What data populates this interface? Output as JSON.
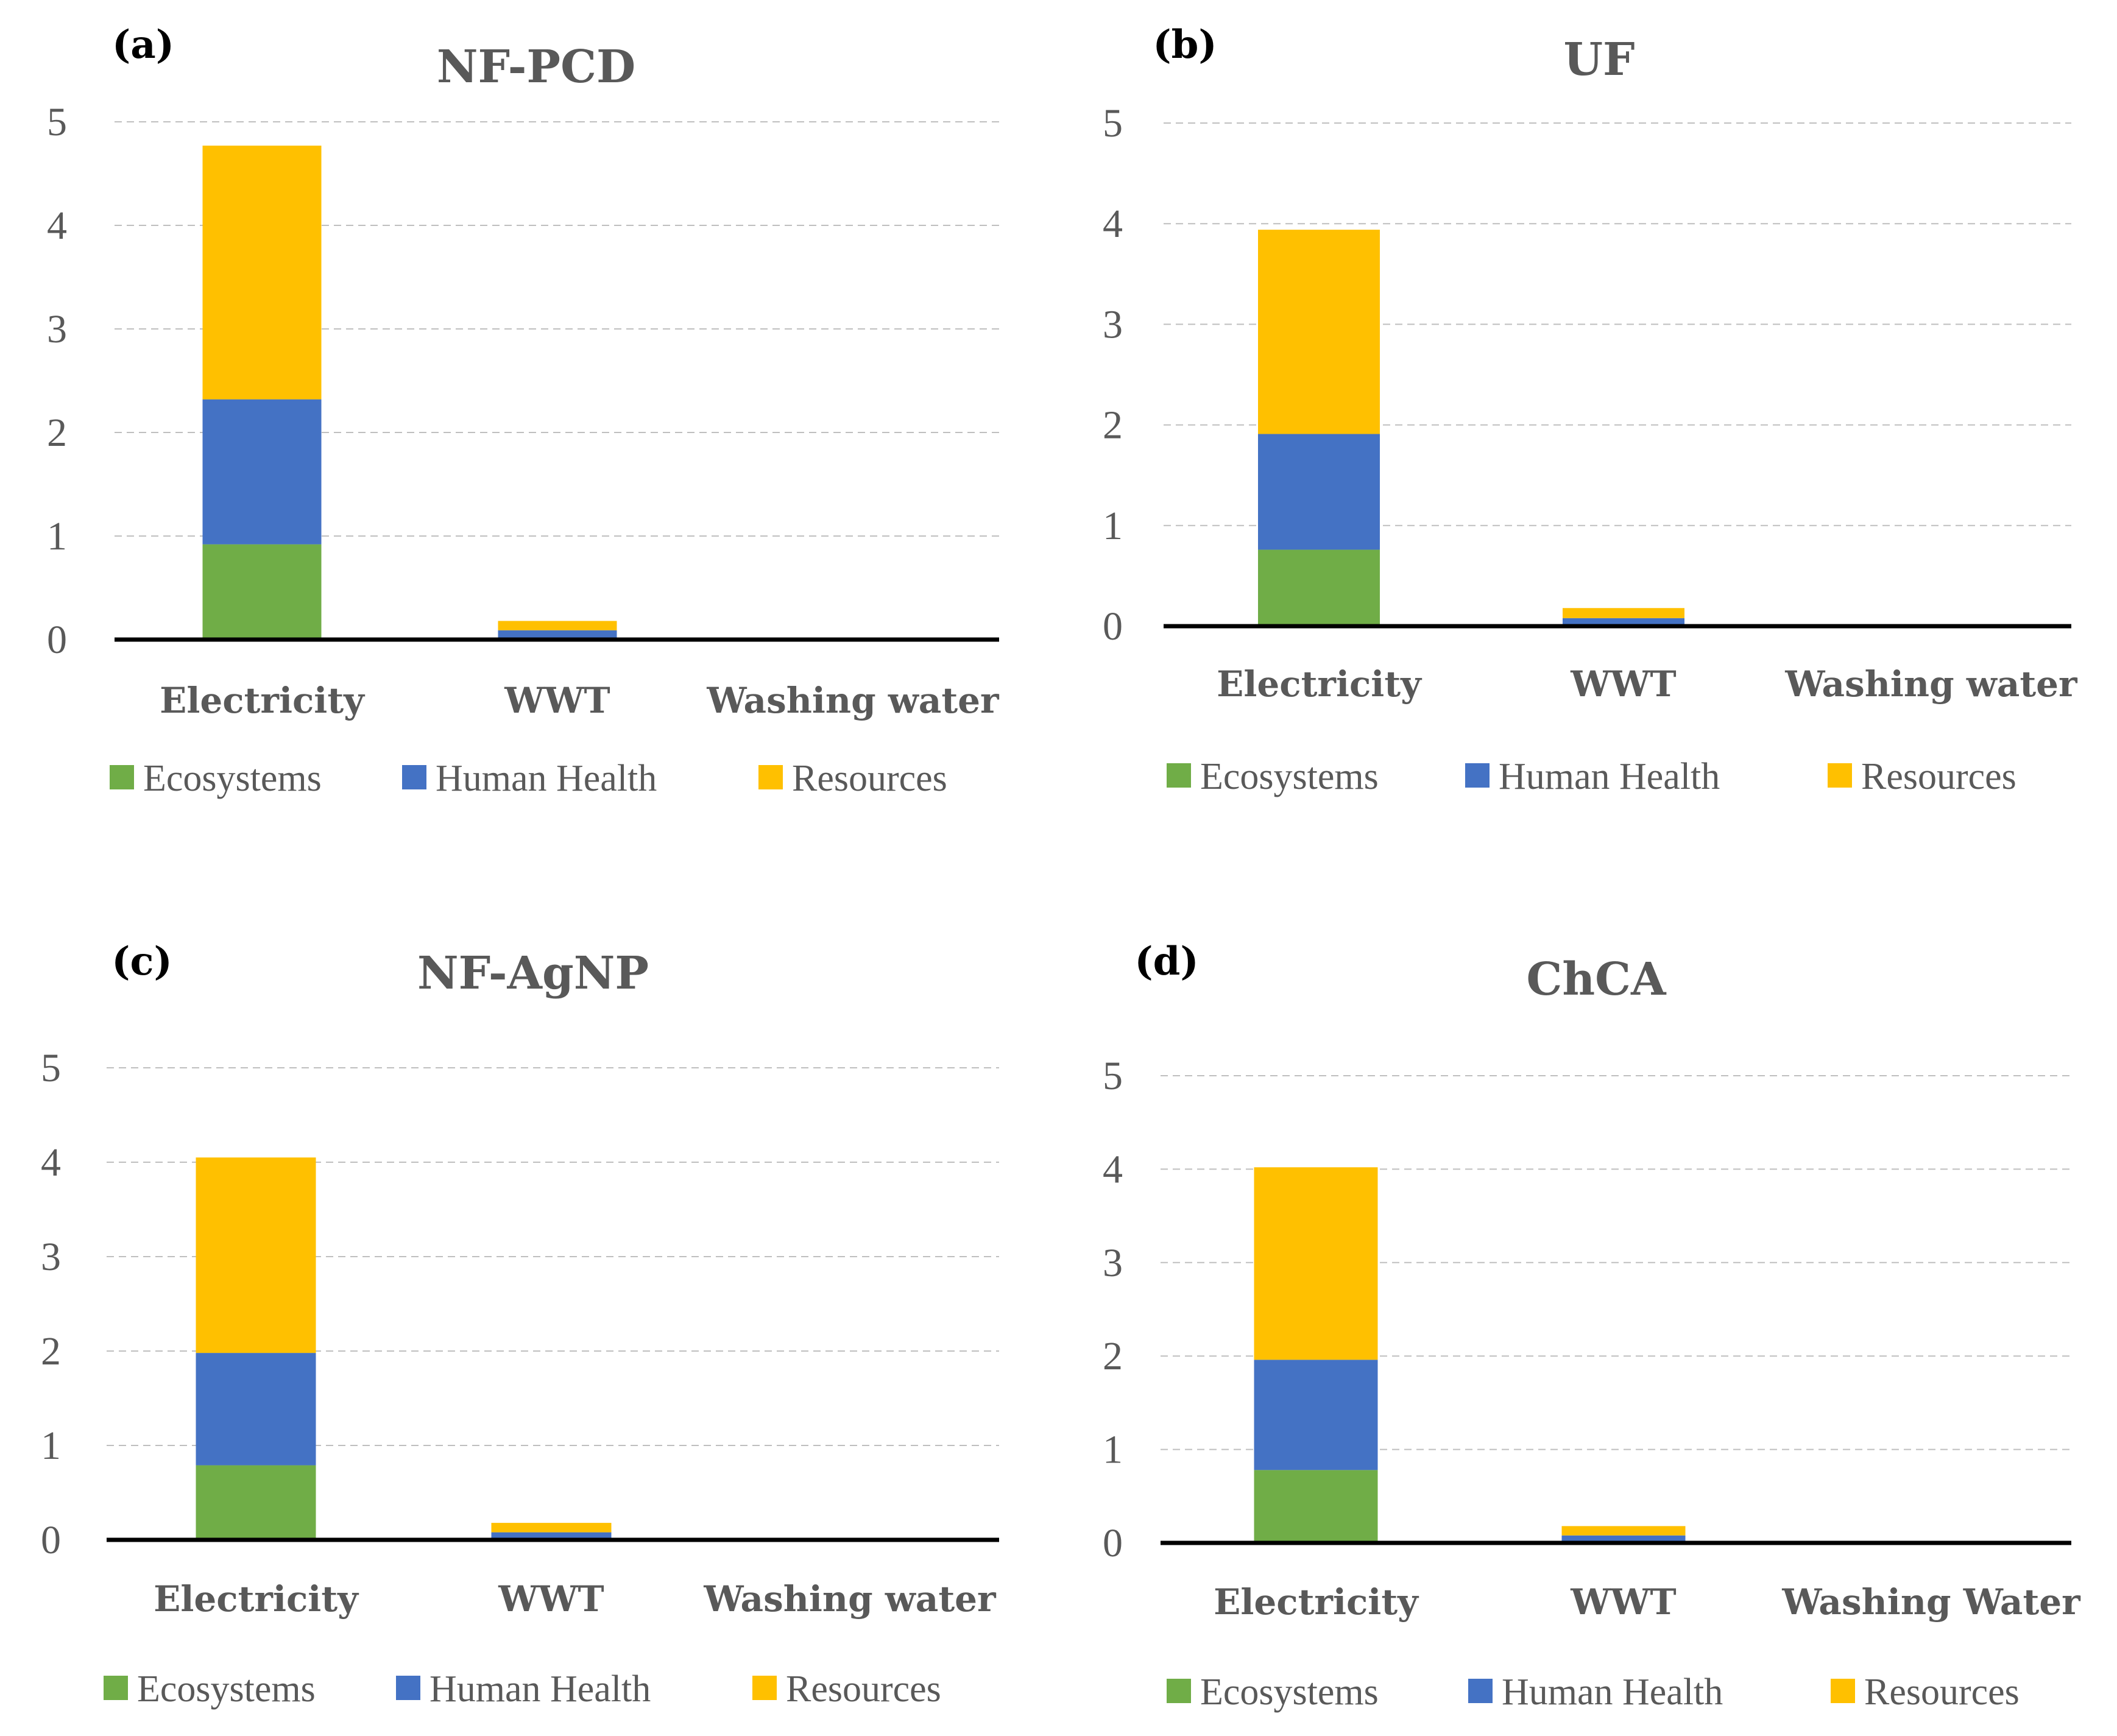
{
  "colors": {
    "ecosystems": "#70ad47",
    "human_health": "#4472c4",
    "resources": "#ffc000"
  },
  "chart_data": [
    {
      "type": "bar",
      "stacked": true,
      "panel": "(a)",
      "title": "NF-PCD",
      "categories": [
        "Electricity",
        "WWT",
        "Washing water"
      ],
      "series": [
        {
          "name": "Ecosystems",
          "values": [
            0.92,
            0.02,
            0.0
          ]
        },
        {
          "name": "Human Health",
          "values": [
            1.4,
            0.07,
            0.0
          ]
        },
        {
          "name": "Resources",
          "values": [
            2.45,
            0.09,
            0.0
          ]
        }
      ],
      "ylim": [
        0,
        5
      ],
      "yticks": [
        "0",
        "1",
        "2",
        "3",
        "4",
        "5"
      ],
      "grid": true,
      "legend": "bottom"
    },
    {
      "type": "bar",
      "stacked": true,
      "panel": "(b)",
      "title": "UF",
      "categories": [
        "Electricity",
        "WWT",
        "Washing water"
      ],
      "series": [
        {
          "name": "Ecosystems",
          "values": [
            0.76,
            0.02,
            0.0
          ]
        },
        {
          "name": "Human Health",
          "values": [
            1.15,
            0.06,
            0.0
          ]
        },
        {
          "name": "Resources",
          "values": [
            2.03,
            0.1,
            0.0
          ]
        }
      ],
      "ylim": [
        0,
        5
      ],
      "yticks": [
        "0",
        "1",
        "2",
        "3",
        "4",
        "5"
      ],
      "grid": true,
      "legend": "bottom"
    },
    {
      "type": "bar",
      "stacked": true,
      "panel": "(c)",
      "title": "NF-AgNP",
      "categories": [
        "Electricity",
        "WWT",
        "Washing water"
      ],
      "series": [
        {
          "name": "Ecosystems",
          "values": [
            0.79,
            0.02,
            0.0
          ]
        },
        {
          "name": "Human Health",
          "values": [
            1.19,
            0.06,
            0.0
          ]
        },
        {
          "name": "Resources",
          "values": [
            2.07,
            0.1,
            0.0
          ]
        }
      ],
      "ylim": [
        0,
        5
      ],
      "yticks": [
        "0",
        "1",
        "2",
        "3",
        "4",
        "5"
      ],
      "grid": true,
      "legend": "bottom"
    },
    {
      "type": "bar",
      "stacked": true,
      "panel": "(d)",
      "title": "ChCA",
      "categories": [
        "Electricity",
        "WWT",
        "Washing Water"
      ],
      "series": [
        {
          "name": "Ecosystems",
          "values": [
            0.78,
            0.02,
            0.0
          ]
        },
        {
          "name": "Human Health",
          "values": [
            1.18,
            0.06,
            0.0
          ]
        },
        {
          "name": "Resources",
          "values": [
            2.06,
            0.1,
            0.0
          ]
        }
      ],
      "ylim": [
        0,
        5
      ],
      "yticks": [
        "0",
        "1",
        "2",
        "3",
        "4",
        "5"
      ],
      "grid": true,
      "legend": "bottom"
    }
  ]
}
